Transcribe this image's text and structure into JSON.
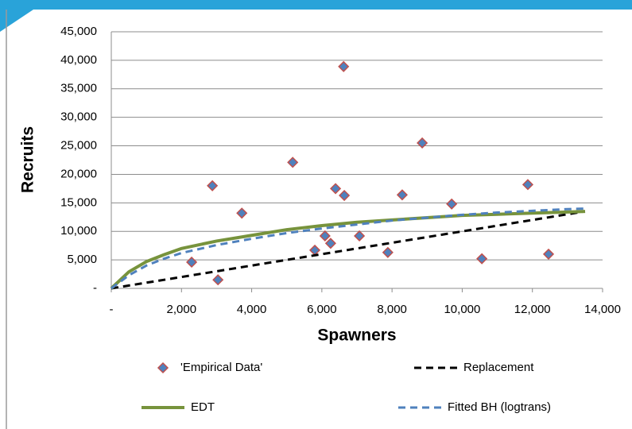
{
  "chart_data": {
    "type": "scatter",
    "x_label": "Spawners",
    "y_label": "Recruits",
    "xlim": [
      0,
      14000
    ],
    "ylim": [
      0,
      45000
    ],
    "xticks": [
      {
        "value": 0,
        "label": "-"
      },
      {
        "value": 2000,
        "label": "2,000"
      },
      {
        "value": 4000,
        "label": "4,000"
      },
      {
        "value": 6000,
        "label": "6,000"
      },
      {
        "value": 8000,
        "label": "8,000"
      },
      {
        "value": 10000,
        "label": "10,000"
      },
      {
        "value": 12000,
        "label": "12,000"
      },
      {
        "value": 14000,
        "label": "14,000"
      }
    ],
    "yticks": [
      {
        "value": 0,
        "label": "-"
      },
      {
        "value": 5000,
        "label": "5,000"
      },
      {
        "value": 10000,
        "label": "10,000"
      },
      {
        "value": 15000,
        "label": "15,000"
      },
      {
        "value": 20000,
        "label": "20,000"
      },
      {
        "value": 25000,
        "label": "25,000"
      },
      {
        "value": 30000,
        "label": "30,000"
      },
      {
        "value": 35000,
        "label": "35,000"
      },
      {
        "value": 40000,
        "label": "40,000"
      },
      {
        "value": 45000,
        "label": "45,000"
      }
    ],
    "grid": true,
    "legend": "bottom",
    "series": [
      {
        "name": "'Empirical Data'",
        "type": "scatter",
        "color": "#4f81bd",
        "edge": "#c0504d",
        "x": [
          2290,
          2880,
          3040,
          3720,
          5170,
          5800,
          6090,
          6250,
          6390,
          6640,
          6620,
          7070,
          7880,
          8290,
          8860,
          9700,
          10560,
          11870,
          12460
        ],
        "values": [
          4600,
          18000,
          1500,
          13200,
          22100,
          6700,
          9200,
          7900,
          17500,
          16300,
          38900,
          9200,
          6300,
          16400,
          25500,
          14800,
          5200,
          18200,
          6000
        ]
      },
      {
        "name": "Replacement",
        "type": "line",
        "color": "#000000",
        "dash": true,
        "x": [
          0,
          13500
        ],
        "values": [
          0,
          13500
        ]
      },
      {
        "name": "EDT",
        "type": "line",
        "color": "#77933c",
        "dash": false,
        "x": [
          0,
          500,
          1000,
          1500,
          2000,
          3000,
          4000,
          5000,
          6000,
          7000,
          8000,
          9000,
          10000,
          11000,
          12000,
          13000,
          13500
        ],
        "values": [
          0,
          2900,
          4700,
          5900,
          7000,
          8300,
          9300,
          10300,
          11000,
          11600,
          12000,
          12400,
          12800,
          13000,
          13200,
          13400,
          13500
        ]
      },
      {
        "name": "Fitted BH (logtrans)",
        "type": "line",
        "color": "#4f81bd",
        "dash": true,
        "x": [
          0,
          500,
          1000,
          1500,
          2000,
          3000,
          4000,
          5000,
          6000,
          7000,
          8000,
          9000,
          10000,
          11000,
          12000,
          13000,
          13500
        ],
        "values": [
          0,
          2300,
          4000,
          5200,
          6200,
          7600,
          8700,
          9700,
          10500,
          11200,
          11900,
          12400,
          12900,
          13300,
          13600,
          13900,
          14000
        ]
      }
    ]
  }
}
